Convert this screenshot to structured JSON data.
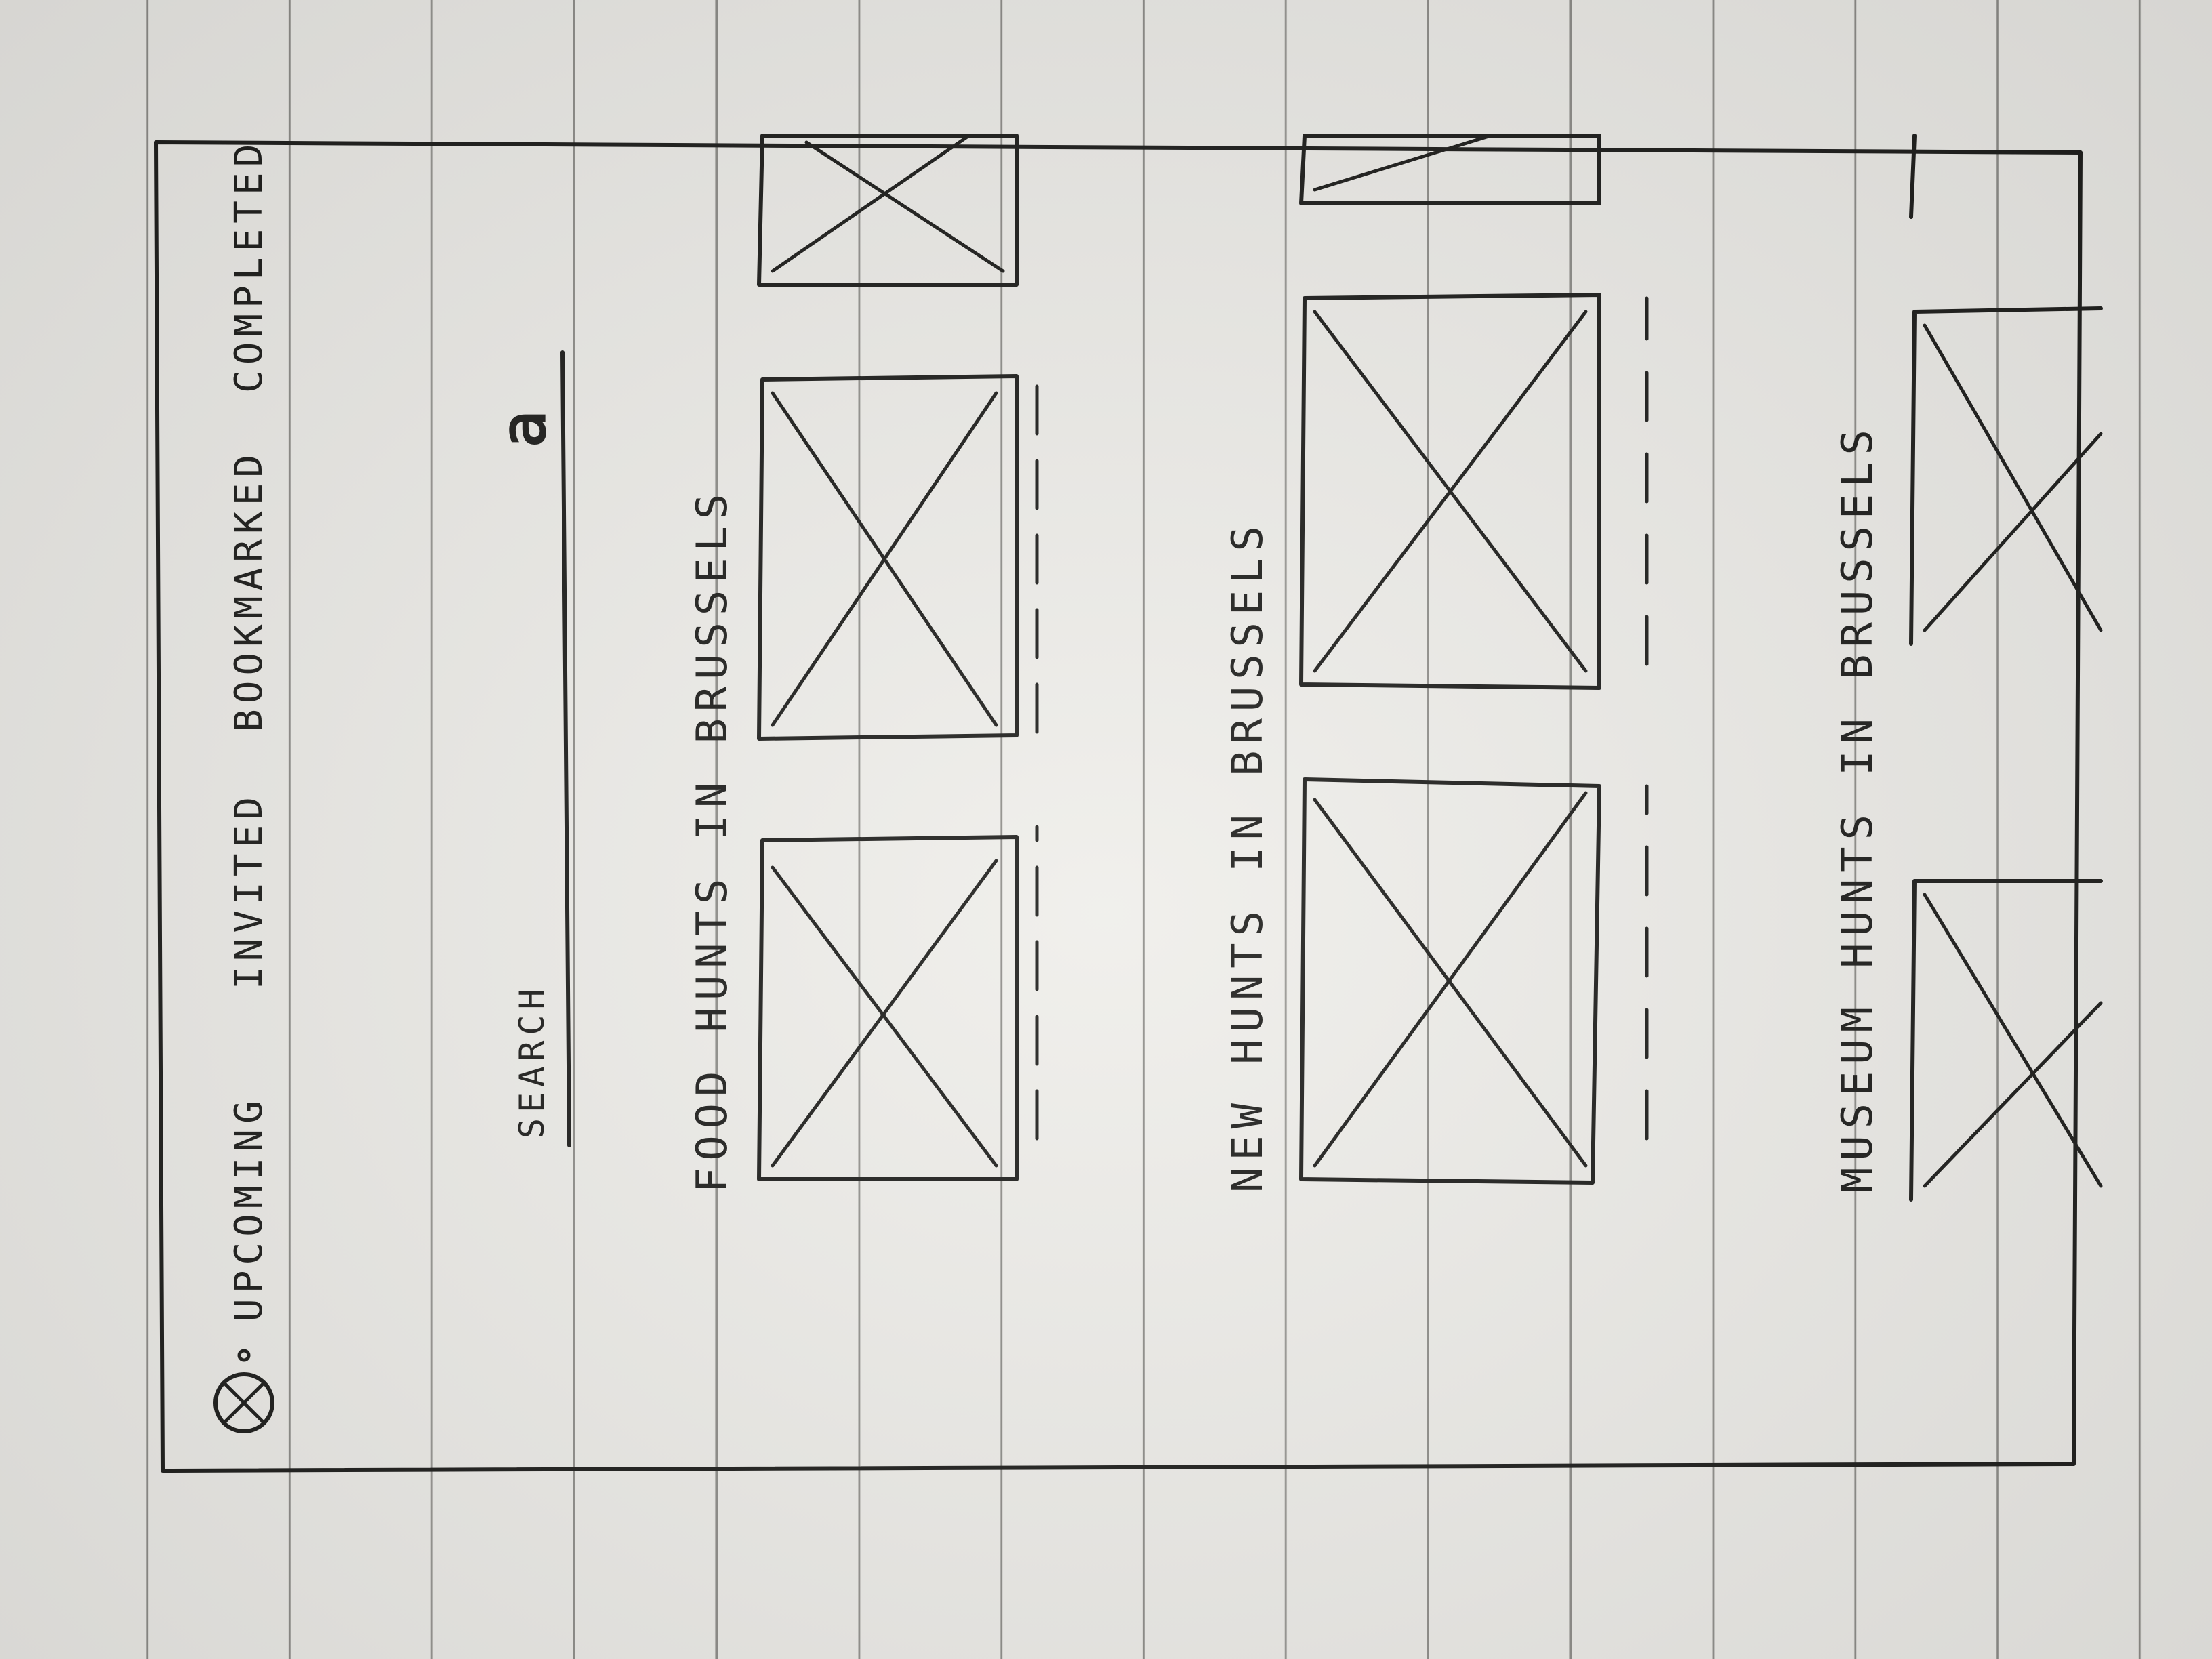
{
  "tabs": [
    {
      "label": "UPCOMING"
    },
    {
      "label": "INVITED"
    },
    {
      "label": "BOOKMARKED"
    },
    {
      "label": "COMPLETED"
    }
  ],
  "search": {
    "label": "SEARCH",
    "icon": "search-icon"
  },
  "sections": [
    {
      "title": "FOOD HUNTS IN BRUSSELS"
    },
    {
      "title": "NEW HUNTS IN BRUSSELS"
    },
    {
      "title": "MUSEUM HUNTS IN BRUSSELS"
    }
  ],
  "colors": {
    "ink": "#1d1d1b",
    "paper": "#efeeea",
    "rule_lines": "#8e8d89"
  }
}
